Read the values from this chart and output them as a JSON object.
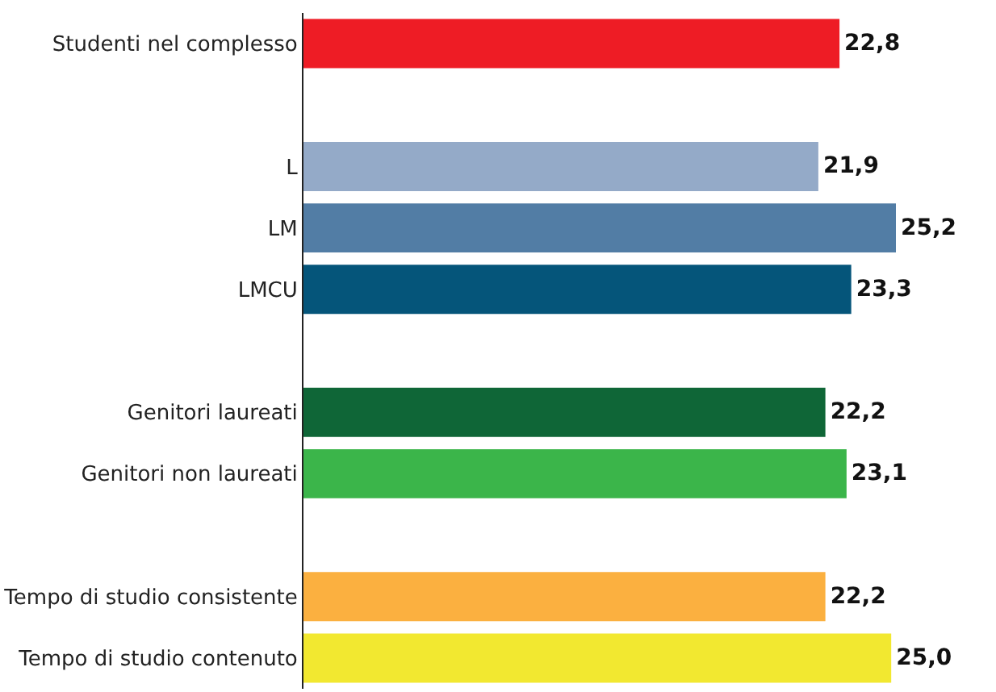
{
  "chart_data": {
    "type": "bar",
    "orientation": "horizontal",
    "categories": [
      "Studenti nel complesso",
      null,
      "L",
      "LM",
      "LMCU",
      null,
      "Genitori laureati",
      "Genitori non laureati",
      null,
      "Tempo di studio consistente",
      "Tempo di studio contenuto"
    ],
    "values": [
      22.8,
      null,
      21.9,
      25.2,
      23.3,
      null,
      22.2,
      23.1,
      null,
      22.2,
      25.0
    ],
    "value_labels": [
      "22,8",
      null,
      "21,9",
      "25,2",
      "23,3",
      null,
      "22,2",
      "23,1",
      null,
      "22,2",
      "25,0"
    ],
    "colors": [
      "#ee1c25",
      null,
      "#94aac8",
      "#527da5",
      "#05557a",
      null,
      "#0f6637",
      "#3bb54a",
      null,
      "#fbb040",
      "#f2e830"
    ]
  }
}
